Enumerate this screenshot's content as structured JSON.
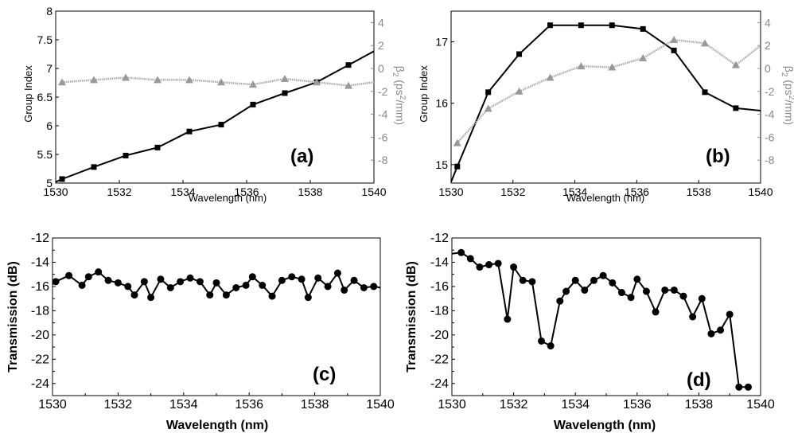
{
  "chart_data": [
    {
      "type": "line",
      "panel_label": "(a)",
      "xlabel": "Wavelength (nm)",
      "ylabel": "Group Index",
      "y2label": "β2 (ps2/mm)",
      "xlim": [
        1530,
        1540
      ],
      "ylim": [
        5,
        8
      ],
      "y2lim": [
        -10,
        5
      ],
      "xticks": [
        "1530",
        "1532",
        "1534",
        "1536",
        "1538",
        "1540"
      ],
      "yticks": [
        "5",
        "5.5",
        "6",
        "6.5",
        "7",
        "7.5",
        "8"
      ],
      "y2ticks": [
        "-8",
        "-6",
        "-4",
        "-2",
        "0",
        "2",
        "4"
      ],
      "grid": false,
      "series": [
        {
          "axis": "left",
          "marker": "square",
          "color": "#000000",
          "x": [
            1530,
            1530.2,
            1531.2,
            1532.2,
            1533.2,
            1534.2,
            1535.2,
            1536.2,
            1537.2,
            1538.2,
            1539.2,
            1540
          ],
          "y": [
            5.02,
            5.07,
            5.28,
            5.48,
            5.62,
            5.9,
            6.02,
            6.37,
            6.57,
            6.76,
            7.06,
            7.3
          ]
        },
        {
          "axis": "right",
          "marker": "triangle",
          "color": "#999999",
          "x": [
            1530.2,
            1531.2,
            1532.2,
            1533.2,
            1534.2,
            1535.2,
            1536.2,
            1537.2,
            1538.2,
            1539.2,
            1540
          ],
          "y": [
            -1.2,
            -1.0,
            -0.8,
            -1.0,
            -1.0,
            -1.2,
            -1.4,
            -0.9,
            -1.2,
            -1.5,
            -1.2
          ]
        }
      ]
    },
    {
      "type": "line",
      "panel_label": "(b)",
      "xlabel": "Wavelength (nm)",
      "ylabel": "Group Index",
      "y2label": "β2 (ps2/mm)",
      "xlim": [
        1530,
        1540
      ],
      "ylim": [
        14.7,
        17.5
      ],
      "y2lim": [
        -10,
        5
      ],
      "xticks": [
        "1530",
        "1532",
        "1534",
        "1536",
        "1538",
        "1540"
      ],
      "yticks": [
        "15",
        "16",
        "17"
      ],
      "y2ticks": [
        "-8",
        "-6",
        "-4",
        "-2",
        "0",
        "2",
        "4"
      ],
      "grid": false,
      "series": [
        {
          "axis": "left",
          "marker": "square",
          "color": "#000000",
          "x": [
            1530,
            1530.2,
            1531.2,
            1532.2,
            1533.2,
            1534.2,
            1535.2,
            1536.2,
            1537.2,
            1538.2,
            1539.2,
            1540
          ],
          "y": [
            14.72,
            14.97,
            16.18,
            16.8,
            17.27,
            17.27,
            17.27,
            17.21,
            16.86,
            16.18,
            15.92,
            15.88
          ]
        },
        {
          "axis": "right",
          "marker": "triangle",
          "color": "#999999",
          "x": [
            1530.2,
            1531.2,
            1532.2,
            1533.2,
            1534.2,
            1535.2,
            1536.2,
            1537.2,
            1538.2,
            1539.2,
            1540
          ],
          "y": [
            -6.5,
            -3.5,
            -2.0,
            -0.8,
            0.2,
            0.1,
            0.9,
            2.5,
            2.2,
            0.3,
            2.0
          ]
        }
      ]
    },
    {
      "type": "line",
      "panel_label": "(c)",
      "xlabel": "Wavelength (nm)",
      "ylabel": "Transmission (dB)",
      "xlim": [
        1530,
        1540
      ],
      "ylim": [
        -25,
        -12
      ],
      "xticks": [
        "1530",
        "1532",
        "1534",
        "1536",
        "1538",
        "1540"
      ],
      "yticks": [
        "-12",
        "-14",
        "-16",
        "-18",
        "-20",
        "-22",
        "-24"
      ],
      "grid": false,
      "series": [
        {
          "marker": "circle",
          "color": "#000000",
          "x": [
            1530,
            1530.1,
            1530.5,
            1530.9,
            1531.1,
            1531.4,
            1531.7,
            1532.0,
            1532.3,
            1532.5,
            1532.8,
            1533.0,
            1533.3,
            1533.6,
            1533.9,
            1534.2,
            1534.5,
            1534.8,
            1535.0,
            1535.3,
            1535.6,
            1535.9,
            1536.1,
            1536.4,
            1536.7,
            1537.0,
            1537.3,
            1537.6,
            1537.8,
            1538.1,
            1538.4,
            1538.7,
            1538.9,
            1539.2,
            1539.5,
            1539.8,
            1540
          ],
          "y": [
            -15.8,
            -15.6,
            -15.1,
            -15.9,
            -15.2,
            -14.8,
            -15.5,
            -15.7,
            -16.0,
            -16.7,
            -15.6,
            -16.9,
            -15.4,
            -16.1,
            -15.6,
            -15.3,
            -15.6,
            -16.7,
            -15.7,
            -16.7,
            -16.1,
            -15.9,
            -15.2,
            -15.9,
            -16.8,
            -15.5,
            -15.2,
            -15.4,
            -16.9,
            -15.3,
            -16.0,
            -14.9,
            -16.3,
            -15.5,
            -16.1,
            -16.0,
            -16.1
          ]
        }
      ]
    },
    {
      "type": "line",
      "panel_label": "(d)",
      "xlabel": "Wavelength (nm)",
      "ylabel": "Transmission (dB)",
      "xlim": [
        1530,
        1540
      ],
      "ylim": [
        -25,
        -12
      ],
      "xticks": [
        "1530",
        "1532",
        "1534",
        "1536",
        "1538",
        "1540"
      ],
      "yticks": [
        "-12",
        "-14",
        "-16",
        "-18",
        "-20",
        "-22",
        "-24"
      ],
      "grid": false,
      "series": [
        {
          "marker": "circle",
          "color": "#000000",
          "x": [
            1530.0,
            1530.3,
            1530.6,
            1530.9,
            1531.2,
            1531.5,
            1531.8,
            1532.0,
            1532.3,
            1532.6,
            1532.9,
            1533.2,
            1533.5,
            1533.7,
            1534.0,
            1534.3,
            1534.6,
            1534.9,
            1535.2,
            1535.5,
            1535.8,
            1536.0,
            1536.3,
            1536.6,
            1536.9,
            1537.2,
            1537.5,
            1537.8,
            1538.1,
            1538.4,
            1538.7,
            1539.0,
            1539.3,
            1539.6
          ],
          "y": [
            -13.3,
            -13.2,
            -13.7,
            -14.4,
            -14.2,
            -14.1,
            -18.7,
            -14.4,
            -15.5,
            -15.6,
            -20.5,
            -20.9,
            -17.2,
            -16.4,
            -15.5,
            -16.3,
            -15.5,
            -15.1,
            -15.7,
            -16.5,
            -16.9,
            -15.4,
            -16.4,
            -18.1,
            -16.3,
            -16.3,
            -16.8,
            -18.5,
            -17.0,
            -19.9,
            -19.6,
            -18.3,
            -24.3,
            -24.3
          ]
        }
      ]
    }
  ]
}
